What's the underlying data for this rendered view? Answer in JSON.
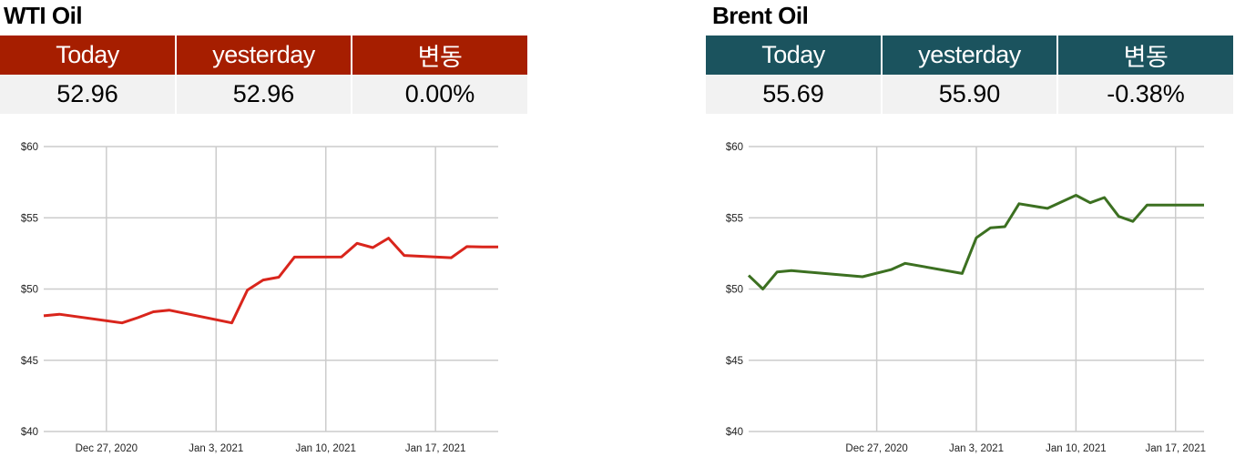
{
  "panels": [
    {
      "title": "WTI Oil",
      "header_color": "#a61e00",
      "headers": [
        "Today",
        "yesterday",
        "변동"
      ],
      "values": [
        "52.96",
        "52.96",
        "0.00%"
      ]
    },
    {
      "title": "Brent Oil",
      "header_color": "#1b535e",
      "headers": [
        "Today",
        "yesterday",
        "변동"
      ],
      "values": [
        "55.69",
        "55.90",
        "-0.38%"
      ]
    }
  ],
  "chart_data": [
    {
      "type": "line",
      "title": "",
      "xlabel": "",
      "ylabel": "",
      "color": "#d9251c",
      "ylim": [
        40,
        60
      ],
      "y_ticks": [
        "$60",
        "$55",
        "$50",
        "$45",
        "$40"
      ],
      "x_tick_labels": [
        "Dec 27, 2020",
        "Jan 3, 2021",
        "Jan 10, 2021",
        "Jan 17, 2021"
      ],
      "x_tick_dates": [
        "2020-12-27",
        "2021-01-03",
        "2021-01-10",
        "2021-01-17"
      ],
      "xlim": [
        "2020-12-23",
        "2021-01-21"
      ],
      "grid": true,
      "series": [
        {
          "x": [
            "2020-12-23",
            "2020-12-24",
            "2020-12-28",
            "2020-12-29",
            "2020-12-30",
            "2020-12-31",
            "2021-01-04",
            "2021-01-05",
            "2021-01-06",
            "2021-01-07",
            "2021-01-08",
            "2021-01-11",
            "2021-01-12",
            "2021-01-13",
            "2021-01-14",
            "2021-01-15",
            "2021-01-18",
            "2021-01-19",
            "2021-01-20",
            "2021-01-21"
          ],
          "y": [
            48.12,
            48.23,
            47.62,
            47.99,
            48.4,
            48.52,
            47.62,
            49.93,
            50.63,
            50.83,
            52.24,
            52.25,
            53.21,
            52.91,
            53.57,
            52.36,
            52.2,
            52.98,
            52.96,
            52.96
          ]
        }
      ]
    },
    {
      "type": "line",
      "title": "",
      "xlabel": "",
      "ylabel": "",
      "color": "#3c7021",
      "ylim": [
        40,
        60
      ],
      "y_ticks": [
        "$60",
        "$55",
        "$50",
        "$45",
        "$40"
      ],
      "x_tick_labels": [
        "Dec 27, 2020",
        "Jan 3, 2021",
        "Jan 10, 2021",
        "Jan 17, 2021"
      ],
      "x_tick_dates": [
        "2020-12-27",
        "2021-01-03",
        "2021-01-10",
        "2021-01-17"
      ],
      "xlim": [
        "2020-12-18",
        "2021-01-19"
      ],
      "grid": true,
      "series": [
        {
          "x": [
            "2020-12-18",
            "2020-12-19",
            "2020-12-20",
            "2020-12-21",
            "2020-12-26",
            "2020-12-28",
            "2020-12-29",
            "2021-01-02",
            "2021-01-03",
            "2021-01-04",
            "2021-01-05",
            "2021-01-06",
            "2021-01-07",
            "2021-01-08",
            "2021-01-10",
            "2021-01-11",
            "2021-01-12",
            "2021-01-13",
            "2021-01-14",
            "2021-01-15",
            "2021-01-18",
            "2021-01-19"
          ],
          "y": [
            50.95,
            50.0,
            51.2,
            51.29,
            50.86,
            51.36,
            51.8,
            51.09,
            53.6,
            54.3,
            54.38,
            55.99,
            55.82,
            55.66,
            56.58,
            56.06,
            56.42,
            55.1,
            54.75,
            55.9,
            55.9,
            55.9
          ]
        }
      ]
    }
  ]
}
